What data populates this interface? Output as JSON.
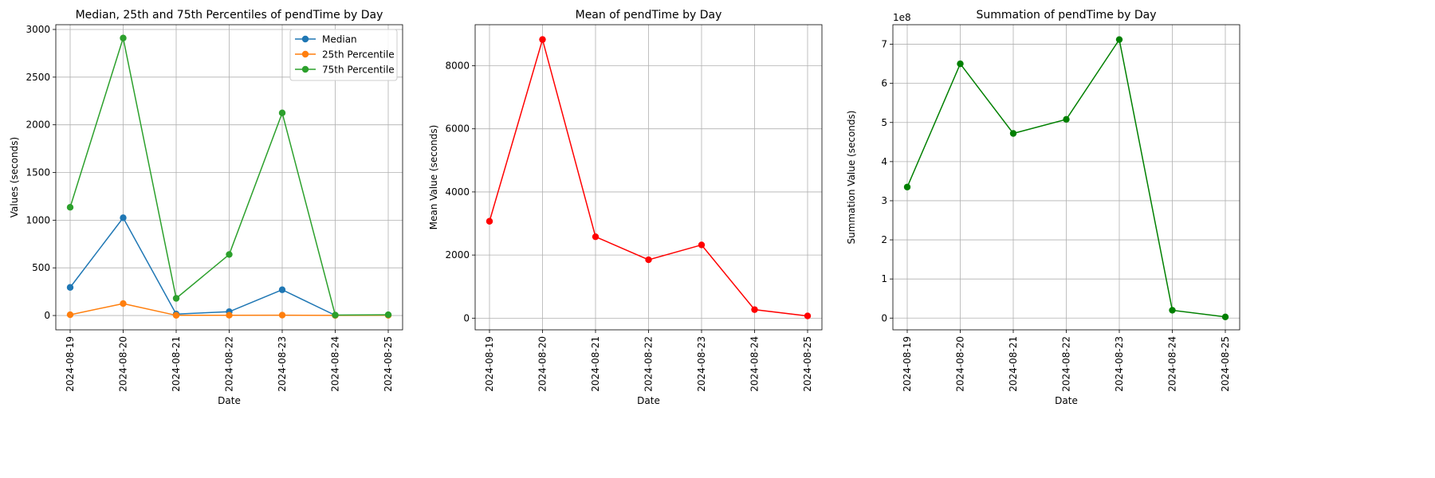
{
  "chart_data": [
    {
      "type": "line",
      "title": "Median, 25th and 75th Percentiles of pendTime by Day",
      "xlabel": "Date",
      "ylabel": "Values (seconds)",
      "categories": [
        "2024-08-19",
        "2024-08-20",
        "2024-08-21",
        "2024-08-22",
        "2024-08-23",
        "2024-08-24",
        "2024-08-25"
      ],
      "ylim": [
        -150,
        3050
      ],
      "yticks": [
        0,
        500,
        1000,
        1500,
        2000,
        2500,
        3000
      ],
      "ytick_labels": [
        "0",
        "500",
        "1000",
        "1500",
        "2000",
        "2500",
        "3000"
      ],
      "grid": true,
      "legend": "upper right",
      "series": [
        {
          "name": "Median",
          "color": "#1f77b4",
          "values": [
            295,
            1025,
            15,
            40,
            270,
            2,
            5
          ]
        },
        {
          "name": "25th Percentile",
          "color": "#ff7f0e",
          "values": [
            8,
            125,
            2,
            3,
            4,
            1,
            2
          ]
        },
        {
          "name": "75th Percentile",
          "color": "#2ca02c",
          "values": [
            1135,
            2910,
            180,
            640,
            2125,
            5,
            8
          ]
        }
      ]
    },
    {
      "type": "line",
      "title": "Mean of pendTime by Day",
      "xlabel": "Date",
      "ylabel": "Mean Value (seconds)",
      "categories": [
        "2024-08-19",
        "2024-08-20",
        "2024-08-21",
        "2024-08-22",
        "2024-08-23",
        "2024-08-24",
        "2024-08-25"
      ],
      "ylim": [
        -370,
        9300
      ],
      "yticks": [
        0,
        2000,
        4000,
        6000,
        8000
      ],
      "ytick_labels": [
        "0",
        "2000",
        "4000",
        "6000",
        "8000"
      ],
      "grid": true,
      "series": [
        {
          "color": "#ff0000",
          "values": [
            3070,
            8830,
            2580,
            1850,
            2320,
            270,
            70
          ]
        }
      ]
    },
    {
      "type": "line",
      "title": "Summation of pendTime by Day",
      "xlabel": "Date",
      "ylabel": "Summation Value (seconds)",
      "offset_label": "1e8",
      "categories": [
        "2024-08-19",
        "2024-08-20",
        "2024-08-21",
        "2024-08-22",
        "2024-08-23",
        "2024-08-24",
        "2024-08-25"
      ],
      "ylim": [
        -0.3,
        7.5
      ],
      "yticks": [
        0,
        1,
        2,
        3,
        4,
        5,
        6,
        7
      ],
      "ytick_labels": [
        "0",
        "1",
        "2",
        "3",
        "4",
        "5",
        "6",
        "7"
      ],
      "grid": true,
      "series": [
        {
          "color": "#008000",
          "values": [
            3.35,
            6.5,
            4.72,
            5.08,
            7.12,
            0.2,
            0.03
          ]
        }
      ]
    }
  ]
}
